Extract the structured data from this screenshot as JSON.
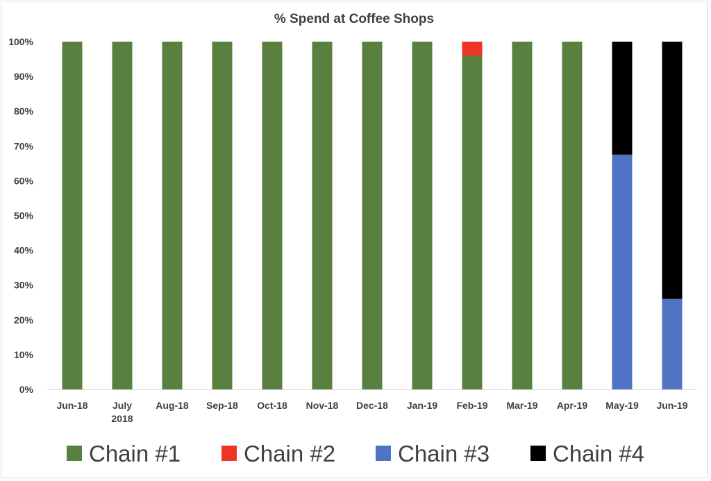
{
  "chart_data": {
    "type": "bar",
    "stacked": true,
    "title": "% Spend at Coffee Shops",
    "xlabel": "",
    "ylabel": "",
    "ylim": [
      0,
      100
    ],
    "y_ticks": [
      "0%",
      "10%",
      "20%",
      "30%",
      "40%",
      "50%",
      "60%",
      "70%",
      "80%",
      "90%",
      "100%"
    ],
    "y_tick_values": [
      0,
      10,
      20,
      30,
      40,
      50,
      60,
      70,
      80,
      90,
      100
    ],
    "grid": false,
    "legend_position": "bottom",
    "categories": [
      [
        "Jun-18"
      ],
      [
        "July",
        "2018"
      ],
      [
        "Aug-18"
      ],
      [
        "Sep-18"
      ],
      [
        "Oct-18"
      ],
      [
        "Nov-18"
      ],
      [
        "Dec-18"
      ],
      [
        "Jan-19"
      ],
      [
        "Feb-19"
      ],
      [
        "Mar-19"
      ],
      [
        "Apr-19"
      ],
      [
        "May-19"
      ],
      [
        "Jun-19"
      ]
    ],
    "series": [
      {
        "name": "Chain #1",
        "color": "#5a8040",
        "values": [
          100,
          100,
          100,
          100,
          100,
          100,
          100,
          100,
          96,
          100,
          100,
          0,
          0
        ]
      },
      {
        "name": "Chain #2",
        "color": "#ee3524",
        "values": [
          0,
          0,
          0,
          0,
          0,
          0,
          0,
          0,
          4,
          0,
          0,
          0,
          0
        ]
      },
      {
        "name": "Chain #3",
        "color": "#4f74c4",
        "values": [
          0,
          0,
          0,
          0,
          0,
          0,
          0,
          0,
          0,
          0,
          0,
          67.5,
          26
        ]
      },
      {
        "name": "Chain #4",
        "color": "#000000",
        "values": [
          0,
          0,
          0,
          0,
          0,
          0,
          0,
          0,
          0,
          0,
          0,
          32.5,
          74
        ]
      }
    ]
  }
}
